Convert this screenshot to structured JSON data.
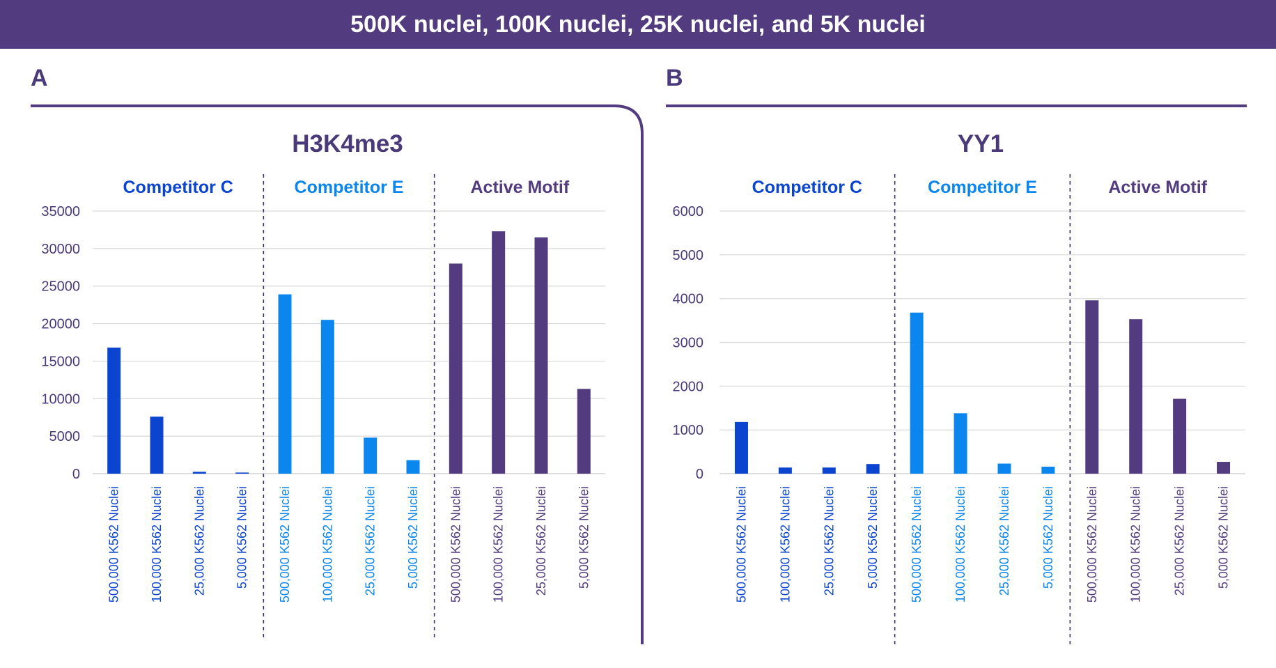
{
  "header": {
    "title": "500K nuclei, 100K nuclei, 25K nuclei, and 5K nuclei"
  },
  "colors": {
    "header_bg": "#523c7f",
    "competitor_c": "#0b45cf",
    "competitor_e": "#0b86ee",
    "active_motif": "#523c7f",
    "axis_text": "#4a3a7a",
    "grid": "#d9d9d9"
  },
  "chart_data": [
    {
      "panel": "A",
      "type": "bar",
      "title": "H3K4me3",
      "ylim": [
        0,
        35000
      ],
      "yticks": [
        0,
        5000,
        10000,
        15000,
        20000,
        25000,
        30000,
        35000
      ],
      "grid": true,
      "groups": [
        {
          "name": "Competitor C",
          "color": "#0b45cf",
          "categories": [
            "500,000 K562 Nuclei",
            "100,000 K562 Nuclei",
            "25,000 K562 Nuclei",
            "5,000 K562 Nuclei"
          ],
          "values": [
            16800,
            7600,
            250,
            150
          ]
        },
        {
          "name": "Competitor E",
          "color": "#0b86ee",
          "categories": [
            "500,000 K562 Nuclei",
            "100,000 K562 Nuclei",
            "25,000 K562 Nuclei",
            "5,000 K562 Nuclei"
          ],
          "values": [
            23900,
            20500,
            4800,
            1800
          ]
        },
        {
          "name": "Active Motif",
          "color": "#523c7f",
          "categories": [
            "500,000 K562 Nuclei",
            "100,000 K562 Nuclei",
            "25,000 K562 Nuclei",
            "5,000 K562 Nuclei"
          ],
          "values": [
            28000,
            32300,
            31500,
            11300
          ]
        }
      ]
    },
    {
      "panel": "B",
      "type": "bar",
      "title": "YY1",
      "ylim": [
        0,
        6000
      ],
      "yticks": [
        0,
        1000,
        2000,
        3000,
        4000,
        5000,
        6000
      ],
      "grid": true,
      "groups": [
        {
          "name": "Competitor C",
          "color": "#0b45cf",
          "categories": [
            "500,000 K562 Nuclei",
            "100,000 K562 Nuclei",
            "25,000 K562 Nuclei",
            "5,000 K562 Nuclei"
          ],
          "values": [
            1180,
            140,
            140,
            220
          ]
        },
        {
          "name": "Competitor E",
          "color": "#0b86ee",
          "categories": [
            "500,000 K562 Nuclei",
            "100,000 K562 Nuclei",
            "25,000 K562 Nuclei",
            "5,000 K562 Nuclei"
          ],
          "values": [
            3680,
            1380,
            230,
            160
          ]
        },
        {
          "name": "Active Motif",
          "color": "#523c7f",
          "categories": [
            "500,000 K562 Nuclei",
            "100,000 K562 Nuclei",
            "25,000 K562 Nuclei",
            "5,000 K562 Nuclei"
          ],
          "values": [
            3960,
            3530,
            1710,
            270
          ]
        }
      ]
    }
  ]
}
